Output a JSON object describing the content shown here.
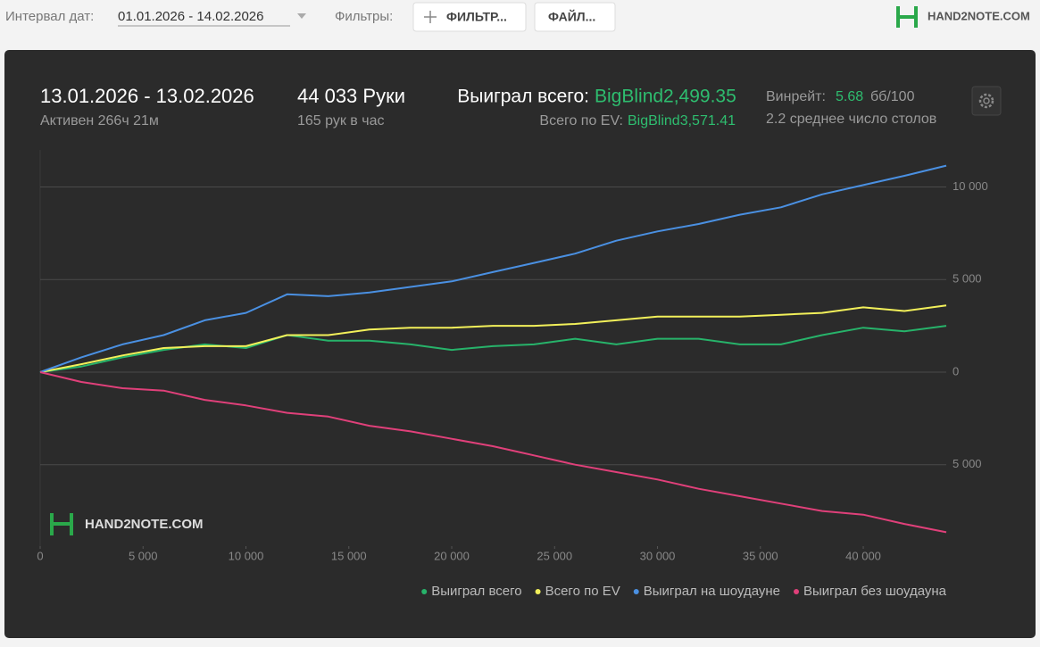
{
  "toolbar": {
    "date_label": "Интервал дат:",
    "date_range": "01.01.2026 - 14.02.2026",
    "filters_label": "Фильтры:",
    "filter_button": "ФИЛЬТР...",
    "file_button": "ФАЙЛ...",
    "logo": "HAND2NOTE.COM"
  },
  "stats": {
    "period": "13.01.2026 - 13.02.2026",
    "active": "Активен 266ч 21м",
    "hands": "44 033 Руки",
    "hands_per_hour": "165 рук в час",
    "won_label": "Выиграл всего:",
    "won_value": "BigBlind2,499.35",
    "ev_label": "Всего по EV:",
    "ev_value": "BigBlind3,571.41",
    "winrate_label": "Винрейт:",
    "winrate_value": "5.68",
    "winrate_unit": "бб/100",
    "tables": "2.2 среднее число столов"
  },
  "watermark": "HAND2NOTE.COM",
  "chart_data": {
    "type": "line",
    "x": [
      0,
      2000,
      4000,
      6000,
      8000,
      10000,
      12000,
      14000,
      16000,
      18000,
      20000,
      22000,
      24000,
      26000,
      28000,
      30000,
      32000,
      34000,
      36000,
      38000,
      40000,
      42000,
      44033
    ],
    "series": [
      {
        "name": "Выиграл всего",
        "color": "#27b36a",
        "values": [
          0,
          300,
          800,
          1200,
          1500,
          1300,
          2000,
          1700,
          1700,
          1500,
          1200,
          1400,
          1500,
          1800,
          1500,
          1800,
          1800,
          1500,
          1500,
          2000,
          2400,
          2200,
          2500
        ]
      },
      {
        "name": "Всего по EV",
        "color": "#f2f05a",
        "values": [
          0,
          430,
          900,
          1300,
          1400,
          1400,
          2000,
          2000,
          2300,
          2400,
          2400,
          2500,
          2500,
          2600,
          2800,
          3000,
          3000,
          3000,
          3100,
          3200,
          3500,
          3300,
          3600
        ]
      },
      {
        "name": "Выиграл на шоудауне",
        "color": "#4a90e2",
        "values": [
          0,
          800,
          1500,
          2000,
          2800,
          3200,
          4200,
          4100,
          4300,
          4600,
          4900,
          5400,
          5900,
          6400,
          7100,
          7600,
          8000,
          8500,
          8900,
          9600,
          10100,
          10600,
          11150
        ]
      },
      {
        "name": "Выиграл без шоудауна",
        "color": "#e0407a",
        "values": [
          0,
          -530,
          -870,
          -1000,
          -1500,
          -1800,
          -2200,
          -2400,
          -2900,
          -3200,
          -3600,
          -4000,
          -4500,
          -5000,
          -5400,
          -5800,
          -6300,
          -6700,
          -7100,
          -7500,
          -7700,
          -8200,
          -8650
        ]
      }
    ],
    "xlim": [
      0,
      44033
    ],
    "xticks": [
      0,
      {
        "value": 5000,
        "label": "5 000"
      },
      {
        "value": 10000,
        "label": "10 000"
      },
      {
        "value": 15000,
        "label": "15 000"
      },
      {
        "value": 20000,
        "label": "20 000"
      },
      {
        "value": 25000,
        "label": "25 000"
      },
      {
        "value": 30000,
        "label": "30 000"
      },
      {
        "value": 35000,
        "label": "35 000"
      },
      {
        "value": 40000,
        "label": "40 000"
      }
    ],
    "ylim": [
      -9400,
      12000
    ],
    "yticks": [
      {
        "value": -5000,
        "label": "5 000"
      },
      0,
      {
        "value": 5000,
        "label": "5 000"
      },
      {
        "value": 10000,
        "label": "10 000"
      }
    ],
    "grid": true
  }
}
